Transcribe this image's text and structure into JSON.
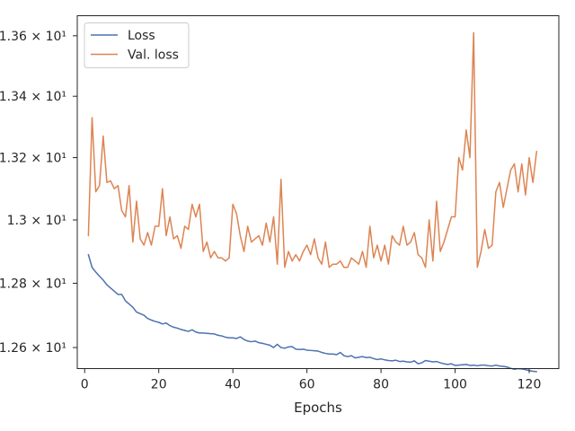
{
  "chart_data": {
    "type": "line",
    "xlabel": "Epochs",
    "ylabel": "",
    "title": "",
    "xlim": [
      -2,
      128
    ],
    "ylim": [
      12.5352,
      13.667
    ],
    "yscale": "log",
    "grid": false,
    "legend_position": "top-left",
    "xticks": [
      {
        "value": 0,
        "label": "0"
      },
      {
        "value": 20,
        "label": "20"
      },
      {
        "value": 40,
        "label": "40"
      },
      {
        "value": 60,
        "label": "60"
      },
      {
        "value": 80,
        "label": "80"
      },
      {
        "value": 100,
        "label": "100"
      },
      {
        "value": 120,
        "label": "120"
      }
    ],
    "yticks": [
      {
        "value": 12.6,
        "label": "1.26 × 10¹"
      },
      {
        "value": 12.8,
        "label": "1.28 × 10¹"
      },
      {
        "value": 13.0,
        "label": "1.3 × 10¹"
      },
      {
        "value": 13.2,
        "label": "1.32 × 10¹"
      },
      {
        "value": 13.4,
        "label": "1.34 × 10¹"
      },
      {
        "value": 13.6,
        "label": "1.36 × 10¹"
      }
    ],
    "series": [
      {
        "name": "Loss",
        "color": "#4c72b0",
        "x": [
          1,
          2,
          3,
          4,
          5,
          6,
          7,
          8,
          9,
          10,
          11,
          12,
          13,
          14,
          15,
          16,
          17,
          18,
          19,
          20,
          21,
          22,
          23,
          24,
          25,
          26,
          27,
          28,
          29,
          30,
          31,
          32,
          33,
          34,
          35,
          36,
          37,
          38,
          39,
          40,
          41,
          42,
          43,
          44,
          45,
          46,
          47,
          48,
          49,
          50,
          51,
          52,
          53,
          54,
          55,
          56,
          57,
          58,
          59,
          60,
          61,
          62,
          63,
          64,
          65,
          66,
          67,
          68,
          69,
          70,
          71,
          72,
          73,
          74,
          75,
          76,
          77,
          78,
          79,
          80,
          81,
          82,
          83,
          84,
          85,
          86,
          87,
          88,
          89,
          90,
          91,
          92,
          93,
          94,
          95,
          96,
          97,
          98,
          99,
          100,
          101,
          102,
          103,
          104,
          105,
          106,
          107,
          108,
          109,
          110,
          111,
          112,
          113,
          114,
          115,
          116,
          117,
          118,
          119,
          120,
          121,
          122
        ],
        "y": [
          12.89,
          12.85,
          12.835,
          12.822,
          12.81,
          12.795,
          12.785,
          12.775,
          12.765,
          12.765,
          12.745,
          12.735,
          12.725,
          12.71,
          12.705,
          12.7,
          12.69,
          12.685,
          12.681,
          12.678,
          12.673,
          12.676,
          12.668,
          12.663,
          12.66,
          12.656,
          12.653,
          12.65,
          12.655,
          12.648,
          12.645,
          12.645,
          12.644,
          12.643,
          12.642,
          12.638,
          12.636,
          12.632,
          12.63,
          12.63,
          12.628,
          12.633,
          12.625,
          12.62,
          12.618,
          12.62,
          12.615,
          12.613,
          12.61,
          12.607,
          12.6,
          12.61,
          12.6,
          12.598,
          12.602,
          12.603,
          12.595,
          12.594,
          12.595,
          12.592,
          12.591,
          12.59,
          12.589,
          12.585,
          12.582,
          12.58,
          12.58,
          12.578,
          12.585,
          12.575,
          12.572,
          12.575,
          12.568,
          12.57,
          12.572,
          12.569,
          12.57,
          12.566,
          12.563,
          12.565,
          12.562,
          12.56,
          12.559,
          12.561,
          12.557,
          12.558,
          12.556,
          12.555,
          12.559,
          12.55,
          12.553,
          12.56,
          12.558,
          12.556,
          12.557,
          12.553,
          12.55,
          12.548,
          12.55,
          12.545,
          12.546,
          12.547,
          12.548,
          12.545,
          12.546,
          12.544,
          12.546,
          12.546,
          12.544,
          12.543,
          12.546,
          12.543,
          12.542,
          12.54,
          12.536,
          12.533,
          12.535,
          12.534,
          12.532,
          12.529,
          12.527,
          12.526
        ]
      },
      {
        "name": "Val. loss",
        "color": "#dd8452",
        "x": [
          1,
          2,
          3,
          4,
          5,
          6,
          7,
          8,
          9,
          10,
          11,
          12,
          13,
          14,
          15,
          16,
          17,
          18,
          19,
          20,
          21,
          22,
          23,
          24,
          25,
          26,
          27,
          28,
          29,
          30,
          31,
          32,
          33,
          34,
          35,
          36,
          37,
          38,
          39,
          40,
          41,
          42,
          43,
          44,
          45,
          46,
          47,
          48,
          49,
          50,
          51,
          52,
          53,
          54,
          55,
          56,
          57,
          58,
          59,
          60,
          61,
          62,
          63,
          64,
          65,
          66,
          67,
          68,
          69,
          70,
          71,
          72,
          73,
          74,
          75,
          76,
          77,
          78,
          79,
          80,
          81,
          82,
          83,
          84,
          85,
          86,
          87,
          88,
          89,
          90,
          91,
          92,
          93,
          94,
          95,
          96,
          97,
          98,
          99,
          100,
          101,
          102,
          103,
          104,
          105,
          106,
          107,
          108,
          109,
          110,
          111,
          112,
          113,
          114,
          115,
          116,
          117,
          118,
          119,
          120,
          121,
          122
        ],
        "y": [
          12.95,
          13.33,
          13.09,
          13.11,
          13.27,
          13.12,
          13.125,
          13.1,
          13.11,
          13.03,
          13.01,
          13.11,
          12.93,
          13.06,
          12.94,
          12.92,
          12.96,
          12.92,
          12.98,
          12.98,
          13.1,
          12.95,
          13.01,
          12.94,
          12.95,
          12.91,
          12.98,
          12.97,
          13.05,
          13.01,
          13.05,
          12.9,
          12.93,
          12.88,
          12.9,
          12.88,
          12.88,
          12.87,
          12.88,
          13.05,
          13.02,
          12.95,
          12.9,
          12.98,
          12.93,
          12.94,
          12.95,
          12.92,
          12.99,
          12.93,
          13.01,
          12.86,
          13.13,
          12.85,
          12.9,
          12.87,
          12.89,
          12.87,
          12.9,
          12.92,
          12.89,
          12.94,
          12.88,
          12.86,
          12.93,
          12.85,
          12.86,
          12.86,
          12.87,
          12.85,
          12.85,
          12.88,
          12.87,
          12.86,
          12.9,
          12.85,
          12.98,
          12.88,
          12.92,
          12.87,
          12.92,
          12.86,
          12.95,
          12.93,
          12.92,
          12.98,
          12.92,
          12.93,
          12.96,
          12.89,
          12.88,
          12.85,
          13.0,
          12.87,
          13.06,
          12.9,
          12.93,
          12.97,
          13.01,
          13.01,
          13.2,
          13.16,
          13.29,
          13.2,
          13.61,
          12.85,
          12.9,
          12.97,
          12.91,
          12.92,
          13.09,
          13.12,
          13.04,
          13.1,
          13.16,
          13.18,
          13.09,
          13.18,
          13.08,
          13.2,
          13.12,
          13.22
        ]
      }
    ]
  }
}
